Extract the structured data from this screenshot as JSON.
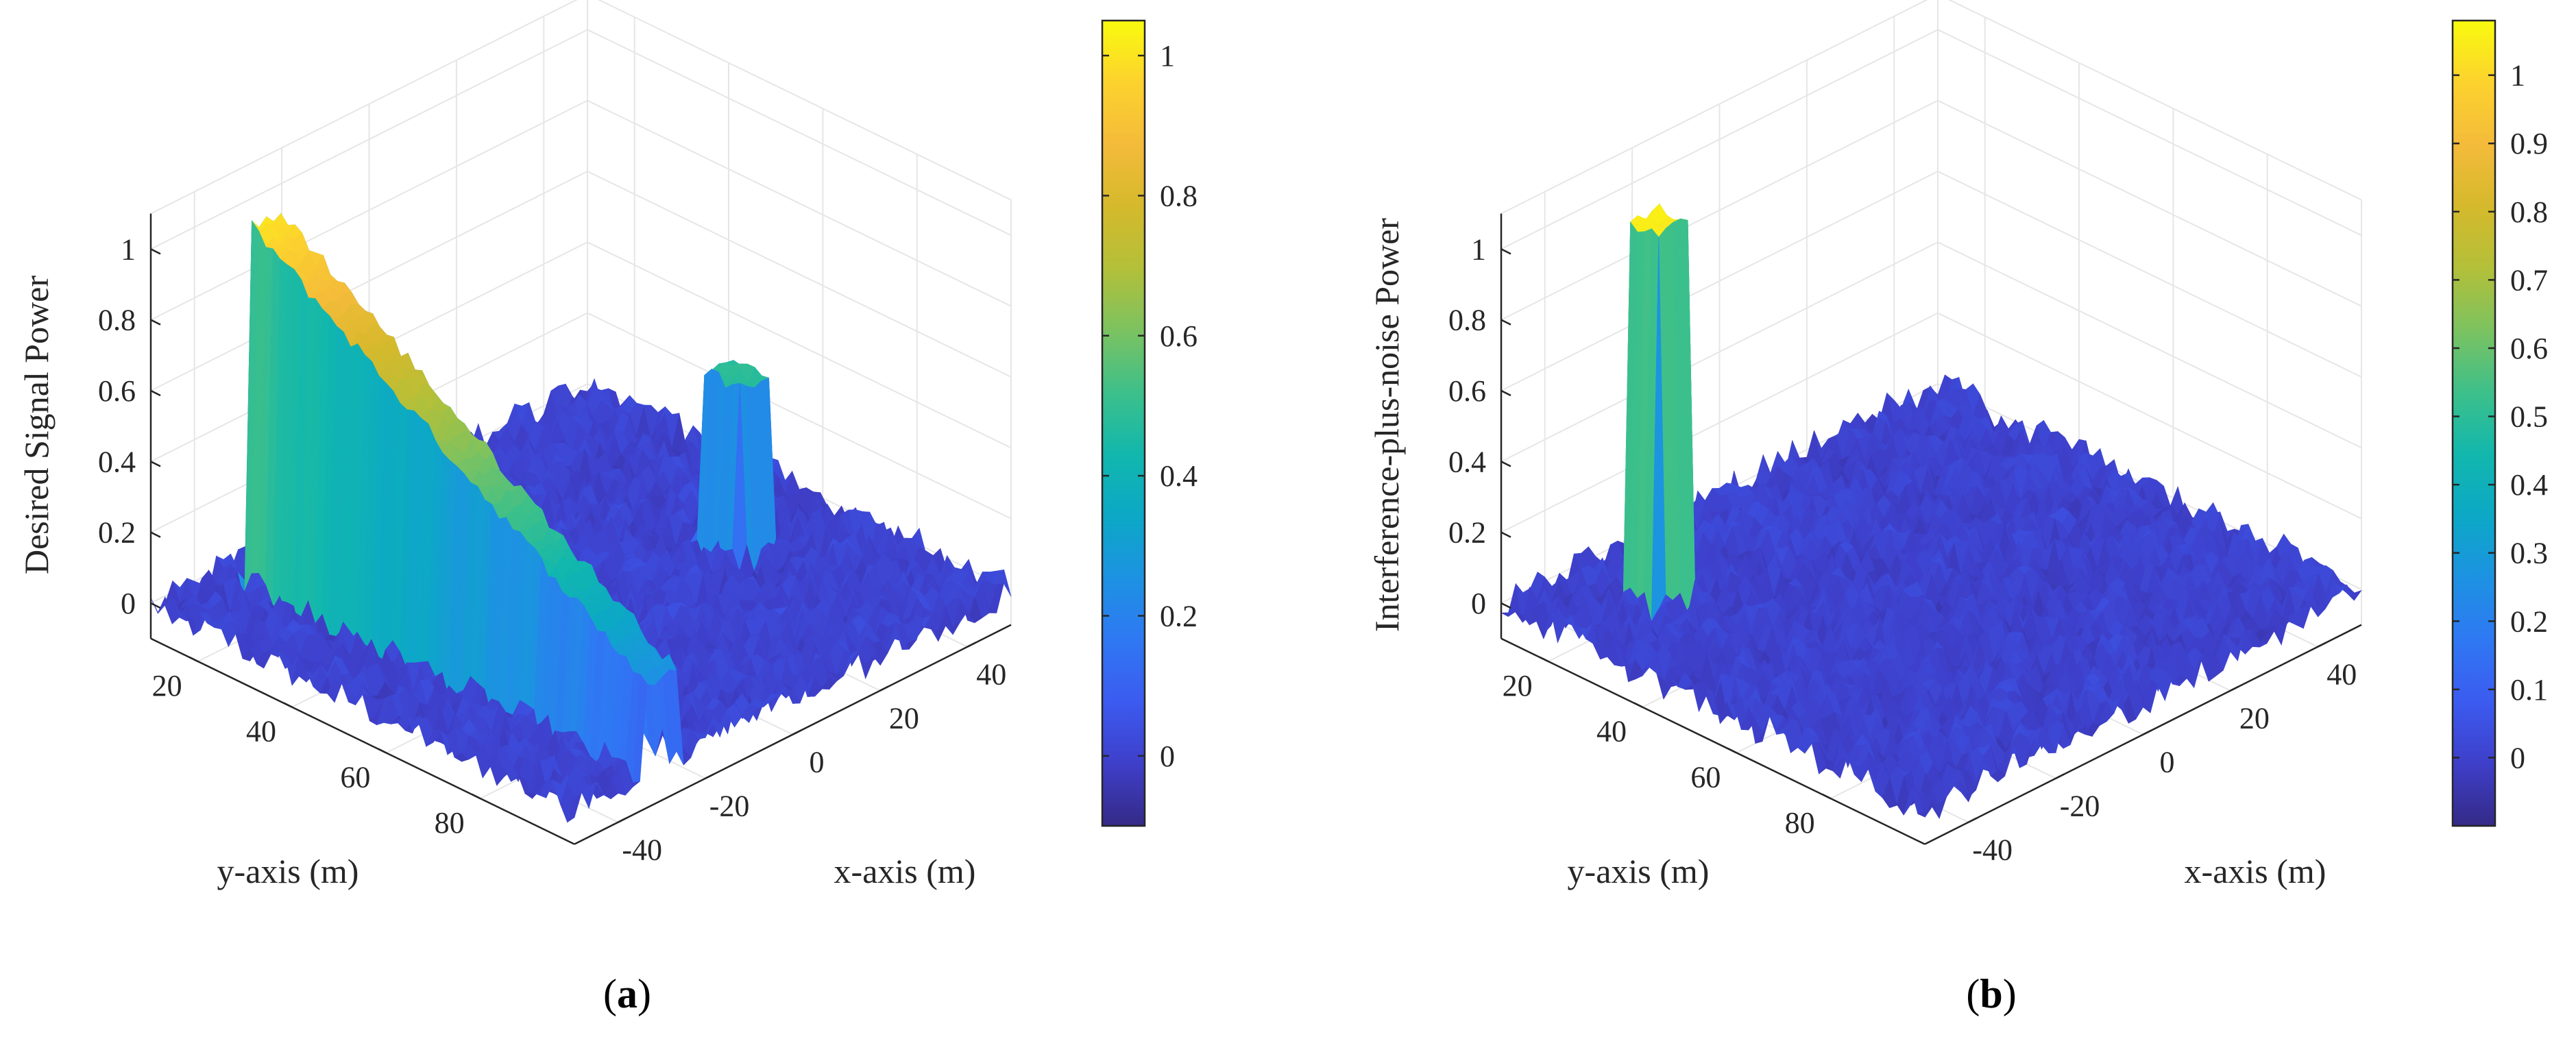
{
  "colors": {
    "parula": [
      "#352a87",
      "#3e3fc9",
      "#3c5bf0",
      "#2f78f3",
      "#1d92e2",
      "#0ca8c6",
      "#12b7ad",
      "#3dc08a",
      "#7cc260",
      "#b3c039",
      "#d5b92c",
      "#f4bb3a",
      "#fcd22e",
      "#f9fb0e"
    ]
  },
  "chart_data": [
    {
      "type": "surface3d",
      "panel": "a",
      "caption_letter": "a",
      "zlabel": "Desired Signal Power",
      "xlabel": "x-axis (m)",
      "ylabel": "y-axis (m)",
      "xlim": [
        -50,
        50
      ],
      "ylim": [
        10,
        100
      ],
      "zlim": [
        -0.1,
        1.1
      ],
      "x_ticks": [
        "-40",
        "-20",
        "0",
        "20",
        "40"
      ],
      "y_ticks": [
        "20",
        "40",
        "60",
        "80"
      ],
      "z_ticks": [
        "0",
        "0.2",
        "0.4",
        "0.6",
        "0.8",
        "1"
      ],
      "colorbar": {
        "min": -0.1,
        "max": 1.05,
        "ticks": [
          "0",
          "0.2",
          "0.4",
          "0.6",
          "0.8",
          "1"
        ],
        "tick_values": [
          0,
          0.2,
          0.4,
          0.6,
          0.8,
          1.0
        ]
      },
      "surface": {
        "noise_level": 0.05,
        "strip": {
          "x_center": -30,
          "x_halfwidth": 4,
          "y_start": 16,
          "y_end": 100,
          "value_at_start": 1.0,
          "value_at_end": 0.25
        },
        "peak": {
          "x_center": 30,
          "y_center": 60,
          "halfwidth": 4,
          "value": 0.48
        }
      }
    },
    {
      "type": "surface3d",
      "panel": "b",
      "caption_letter": "b",
      "zlabel": "Interference-plus-noise Power",
      "xlabel": "x-axis (m)",
      "ylabel": "y-axis (m)",
      "xlim": [
        -50,
        50
      ],
      "ylim": [
        10,
        100
      ],
      "zlim": [
        -0.1,
        1.1
      ],
      "x_ticks": [
        "-40",
        "-20",
        "0",
        "20",
        "40"
      ],
      "y_ticks": [
        "20",
        "40",
        "60",
        "80"
      ],
      "z_ticks": [
        "0",
        "0.2",
        "0.4",
        "0.6",
        "0.8",
        "1"
      ],
      "colorbar": {
        "min": -0.1,
        "max": 1.08,
        "ticks": [
          "0",
          "0.1",
          "0.2",
          "0.3",
          "0.4",
          "0.5",
          "0.6",
          "0.7",
          "0.8",
          "0.9",
          "1"
        ],
        "tick_values": [
          0,
          0.1,
          0.2,
          0.3,
          0.4,
          0.5,
          0.6,
          0.7,
          0.8,
          0.9,
          1.0
        ]
      },
      "surface": {
        "noise_level": 0.05,
        "peak": {
          "x_center": -30,
          "y_center": 25,
          "halfwidth": 4,
          "value": 1.05
        }
      }
    }
  ]
}
